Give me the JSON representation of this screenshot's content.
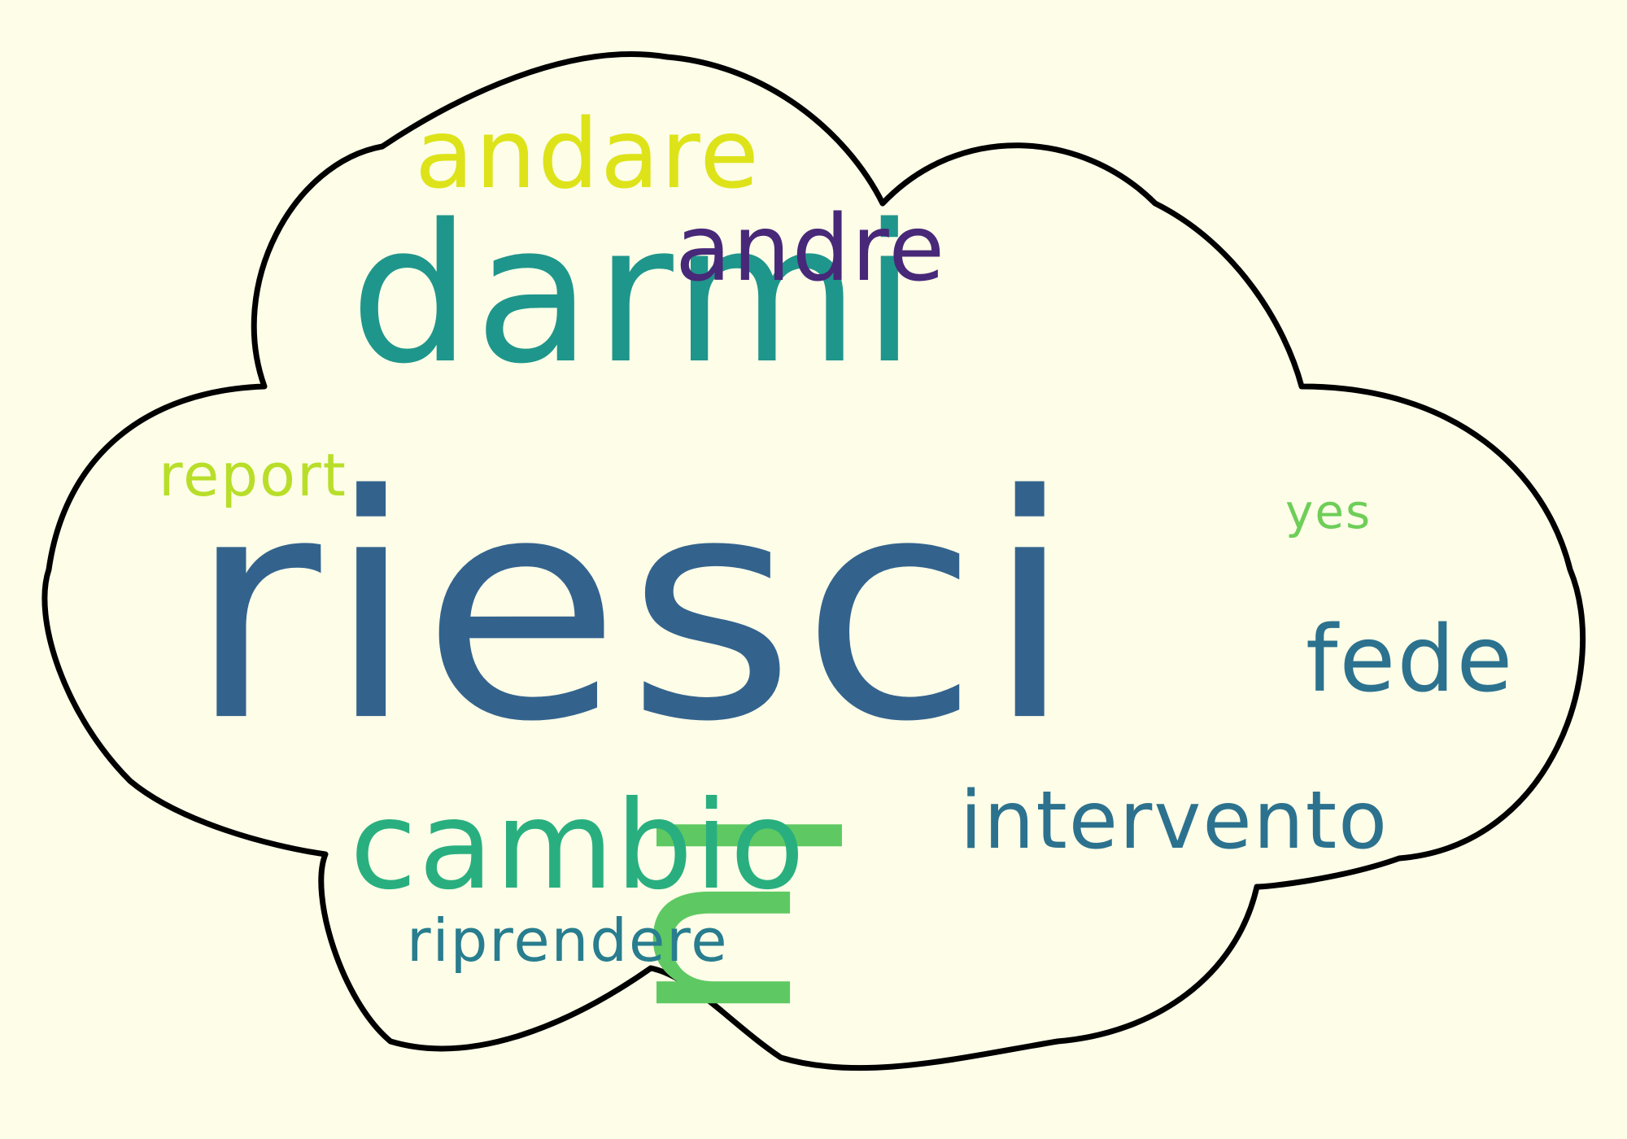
{
  "words": [
    {
      "text": "riesci",
      "color": "#33638d"
    },
    {
      "text": "darmi",
      "color": "#1f968b"
    },
    {
      "text": "lu",
      "color": "#5ec962"
    },
    {
      "text": "cambio",
      "color": "#29af7f"
    },
    {
      "text": "andare",
      "color": "#dde318"
    },
    {
      "text": "andre",
      "color": "#482878"
    },
    {
      "text": "intervento",
      "color": "#2c728e"
    },
    {
      "text": "fede",
      "color": "#2c728e"
    },
    {
      "text": "riprendere",
      "color": "#287d8e"
    },
    {
      "text": "report",
      "color": "#b8de29"
    },
    {
      "text": "yes",
      "color": "#6ece58"
    }
  ],
  "colors": {
    "background": "#fdfde8",
    "outline": "#000000"
  }
}
